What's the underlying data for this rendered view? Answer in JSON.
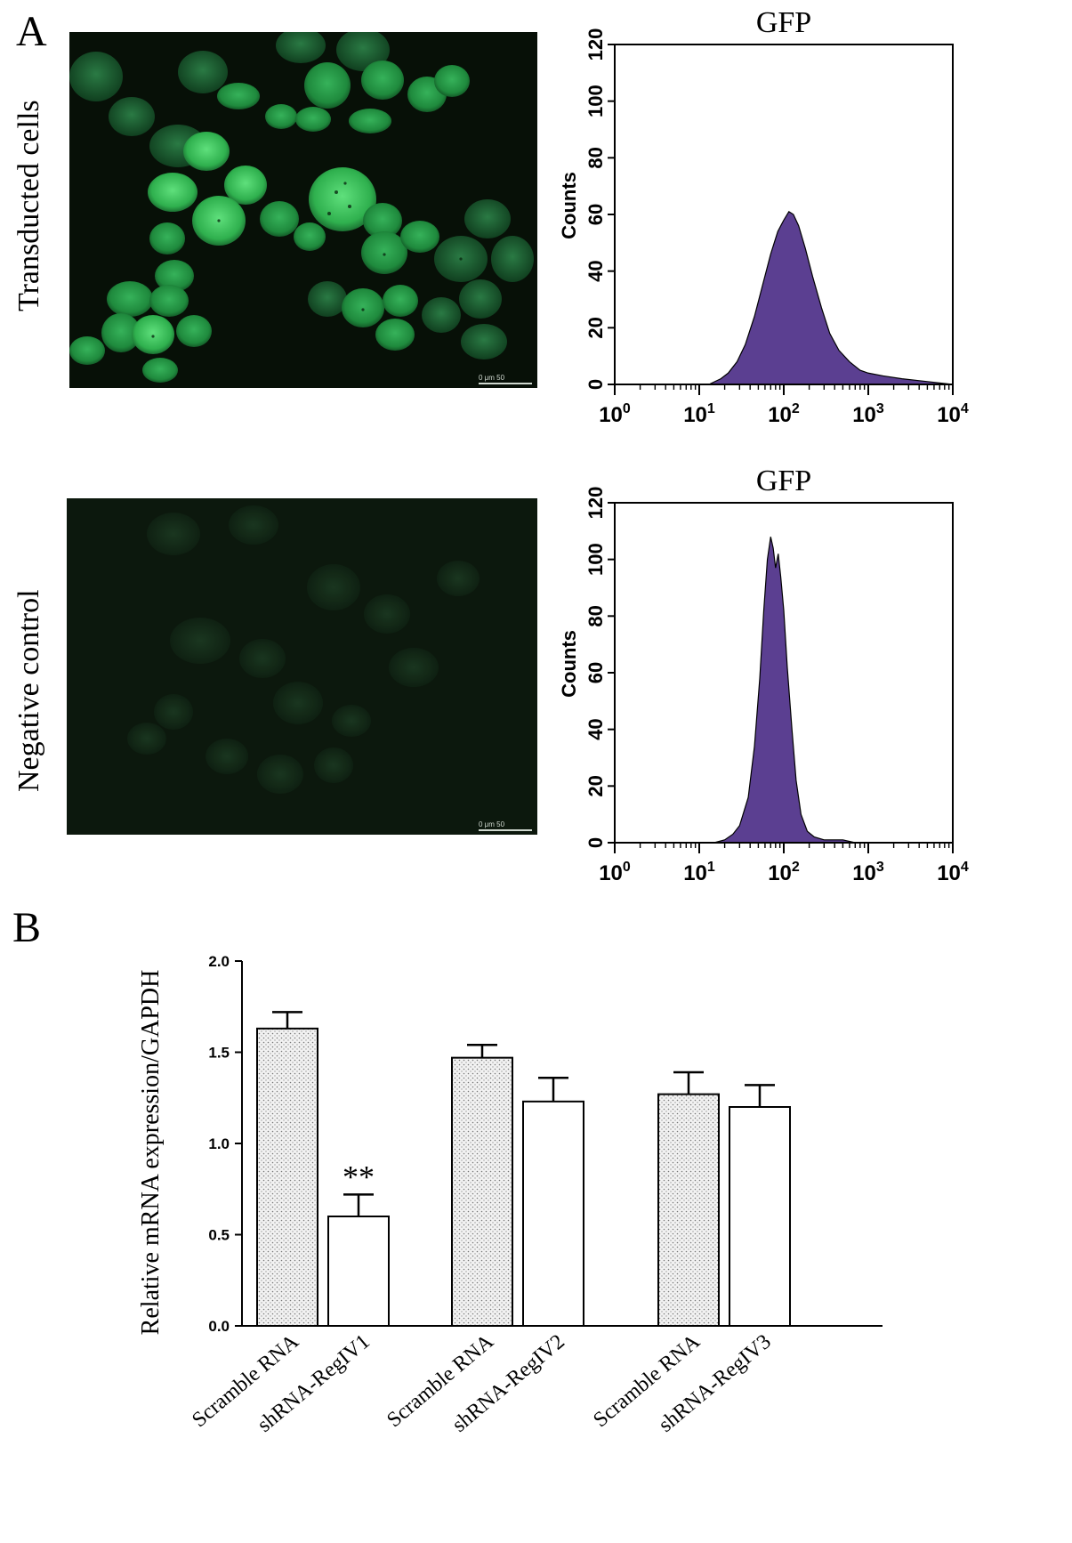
{
  "panel_a": {
    "letter": "A",
    "rows": [
      {
        "label": "Transducted cells",
        "scalebar_text": "0   μm   50",
        "chart_title": "GFP",
        "ylabel": "Counts",
        "y_ticks": [
          "0",
          "20",
          "40",
          "60",
          "80",
          "100",
          "120"
        ],
        "x_ticks": [
          [
            "10",
            "0"
          ],
          [
            "10",
            "1"
          ],
          [
            "10",
            "2"
          ],
          [
            "10",
            "3"
          ],
          [
            "10",
            "4"
          ]
        ],
        "fill_color": "#5b3f91"
      },
      {
        "label": "Negative control",
        "scalebar_text": "0   μm   50",
        "chart_title": "GFP",
        "ylabel": "Counts",
        "y_ticks": [
          "0",
          "20",
          "40",
          "60",
          "80",
          "100",
          "120"
        ],
        "x_ticks": [
          [
            "10",
            "0"
          ],
          [
            "10",
            "1"
          ],
          [
            "10",
            "2"
          ],
          [
            "10",
            "3"
          ],
          [
            "10",
            "4"
          ]
        ],
        "fill_color": "#5b3f91"
      }
    ]
  },
  "panel_b": {
    "letter": "B",
    "significance": "**"
  },
  "chart_data": [
    {
      "type": "area",
      "title": "GFP",
      "xlabel": "",
      "ylabel": "Counts",
      "x_scale": "log",
      "xlim": [
        1,
        10000
      ],
      "ylim": [
        0,
        120
      ],
      "x": [
        13,
        18,
        22,
        28,
        35,
        45,
        55,
        70,
        85,
        100,
        115,
        130,
        150,
        180,
        220,
        280,
        350,
        450,
        600,
        800,
        1000,
        1500,
        2500,
        5000,
        10000
      ],
      "y": [
        0,
        2,
        4,
        8,
        14,
        24,
        34,
        46,
        54,
        58,
        61,
        60,
        56,
        48,
        38,
        27,
        18,
        12,
        8,
        5,
        4,
        3,
        2,
        1,
        0
      ],
      "color": "#5b3f91"
    },
    {
      "type": "area",
      "title": "GFP",
      "xlabel": "",
      "ylabel": "Counts",
      "x_scale": "log",
      "xlim": [
        1,
        10000
      ],
      "ylim": [
        0,
        120
      ],
      "x": [
        15,
        20,
        25,
        30,
        38,
        45,
        52,
        58,
        64,
        70,
        75,
        80,
        86,
        92,
        100,
        110,
        125,
        140,
        160,
        190,
        230,
        300,
        500,
        700
      ],
      "y": [
        0,
        1,
        3,
        6,
        16,
        34,
        58,
        82,
        100,
        108,
        104,
        97,
        102,
        94,
        82,
        62,
        40,
        22,
        10,
        4,
        2,
        1,
        1,
        0
      ],
      "color": "#5b3f91"
    },
    {
      "type": "bar",
      "title": "",
      "xlabel": "",
      "ylabel": "Relative mRNA expression/GAPDH",
      "categories": [
        "Scramble RNA",
        "shRNA-RegIV1",
        "Scramble RNA",
        "shRNA-RegIV2",
        "Scramble RNA",
        "shRNA-RegIV3"
      ],
      "values": [
        1.63,
        0.6,
        1.47,
        1.23,
        1.27,
        1.2
      ],
      "errors": [
        0.09,
        0.12,
        0.07,
        0.13,
        0.12,
        0.12
      ],
      "patterns": [
        "dotted",
        "plain",
        "dotted",
        "plain",
        "dotted",
        "plain"
      ],
      "y_ticks": [
        "0.0",
        "0.5",
        "1.0",
        "1.5",
        "2.0"
      ],
      "ylim": [
        0,
        2.0
      ],
      "annotations": [
        {
          "category_index": 1,
          "text": "**"
        }
      ]
    }
  ]
}
